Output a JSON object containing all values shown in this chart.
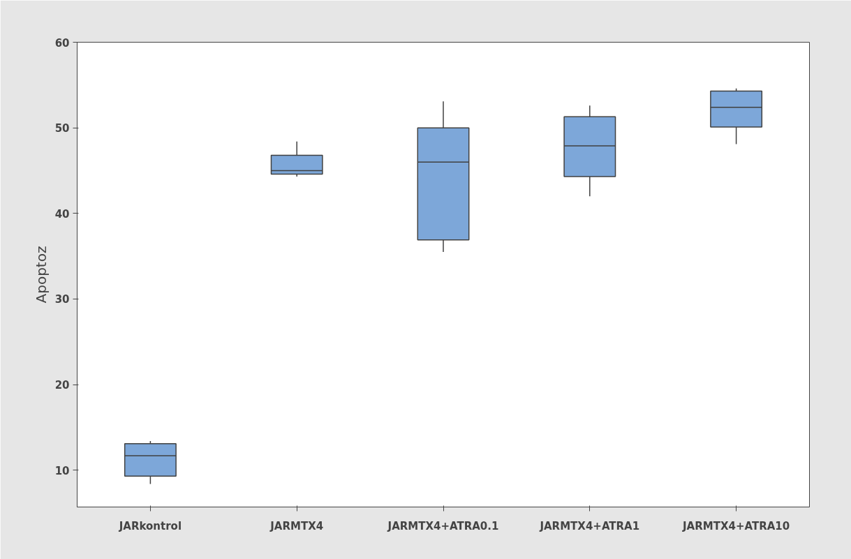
{
  "chart_data": {
    "type": "box",
    "ylabel": "Apoptoz",
    "categories": [
      "JARkontrol",
      "JARMTX4",
      "JARMTX4+ATRA0.1",
      "JARMTX4+ATRA1",
      "JARMTX4+ATRA10"
    ],
    "boxes": [
      {
        "low": 8.4,
        "q1": 9.3,
        "median": 11.7,
        "q3": 13.1,
        "high": 13.4
      },
      {
        "low": 44.3,
        "q1": 44.6,
        "median": 45.0,
        "q3": 46.8,
        "high": 48.4
      },
      {
        "low": 35.5,
        "q1": 36.9,
        "median": 46.0,
        "q3": 50.0,
        "high": 53.1
      },
      {
        "low": 42.0,
        "q1": 44.3,
        "median": 47.9,
        "q3": 51.3,
        "high": 52.6
      },
      {
        "low": 48.1,
        "q1": 50.1,
        "median": 52.4,
        "q3": 54.3,
        "high": 54.6
      }
    ],
    "color": "#7da7d9",
    "ylim": [
      5.7,
      60
    ],
    "yticks": [
      10,
      20,
      30,
      40,
      50,
      60
    ],
    "grid": false
  }
}
